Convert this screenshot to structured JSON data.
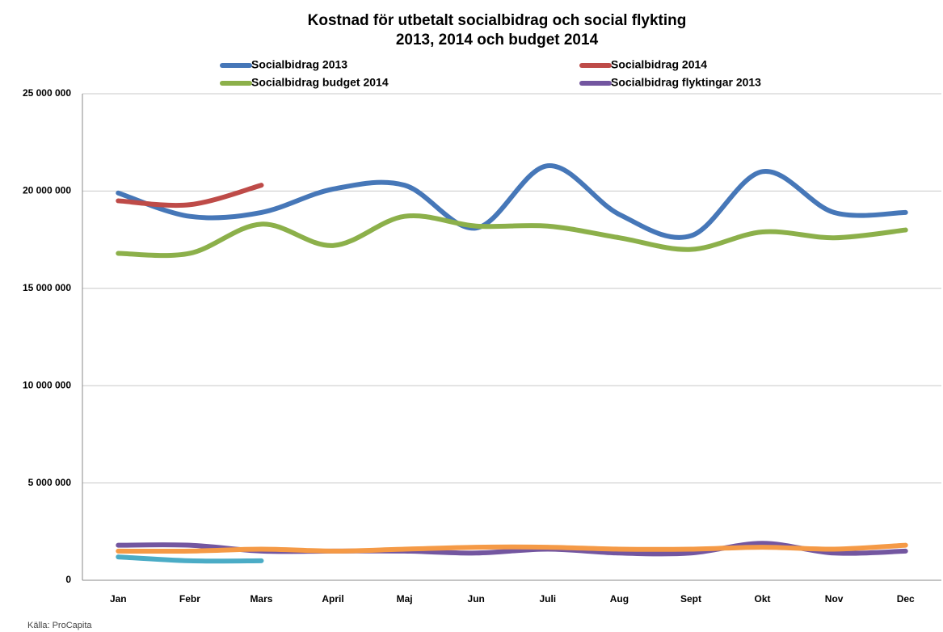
{
  "chart_data": {
    "type": "line",
    "title": "Kostnad för utbetalt socialbidrag och social flykting",
    "subtitle": "2013, 2014 och budget 2014",
    "source": "Källa: ProCapita",
    "categories": [
      "Jan",
      "Febr",
      "Mars",
      "April",
      "Maj",
      "Jun",
      "Juli",
      "Aug",
      "Sept",
      "Okt",
      "Nov",
      "Dec"
    ],
    "series": [
      {
        "name": "Socialbidrag 2013",
        "color": "#4677b8",
        "values": [
          19900000,
          18700000,
          18900000,
          20100000,
          20300000,
          18100000,
          21300000,
          18800000,
          17700000,
          21000000,
          18900000,
          18900000
        ]
      },
      {
        "name": "Socialbidrag 2014",
        "color": "#be4b48",
        "values": [
          19500000,
          19300000,
          20300000,
          null,
          null,
          null,
          null,
          null,
          null,
          null,
          null,
          null
        ]
      },
      {
        "name": "Socialbidrag budget 2014",
        "color": "#8cb04a",
        "values": [
          16800000,
          16800000,
          18300000,
          17200000,
          18700000,
          18200000,
          18200000,
          17600000,
          17000000,
          17900000,
          17600000,
          18000000
        ]
      },
      {
        "name": "Socialbidrag flyktingar 2013",
        "color": "#7356a0",
        "values": [
          1800000,
          1800000,
          1500000,
          1500000,
          1500000,
          1400000,
          1600000,
          1400000,
          1400000,
          1900000,
          1400000,
          1500000
        ]
      },
      {
        "color": "#4bacc6",
        "values": [
          1200000,
          1000000,
          1000000,
          null,
          null,
          null,
          null,
          null,
          null,
          null,
          null,
          null
        ]
      },
      {
        "color": "#f59a46",
        "values": [
          1500000,
          1500000,
          1600000,
          1500000,
          1600000,
          1700000,
          1700000,
          1600000,
          1600000,
          1700000,
          1600000,
          1800000
        ]
      }
    ],
    "ylim": [
      0,
      25000000
    ],
    "yticks": [
      {
        "value": 0,
        "label": "0"
      },
      {
        "value": 5000000,
        "label": "5 000 000"
      },
      {
        "value": 10000000,
        "label": "10 000 000"
      },
      {
        "value": 15000000,
        "label": "15 000 000"
      },
      {
        "value": 20000000,
        "label": "20 000 000"
      },
      {
        "value": 25000000,
        "label": "25 000 000"
      }
    ],
    "grid": true
  }
}
